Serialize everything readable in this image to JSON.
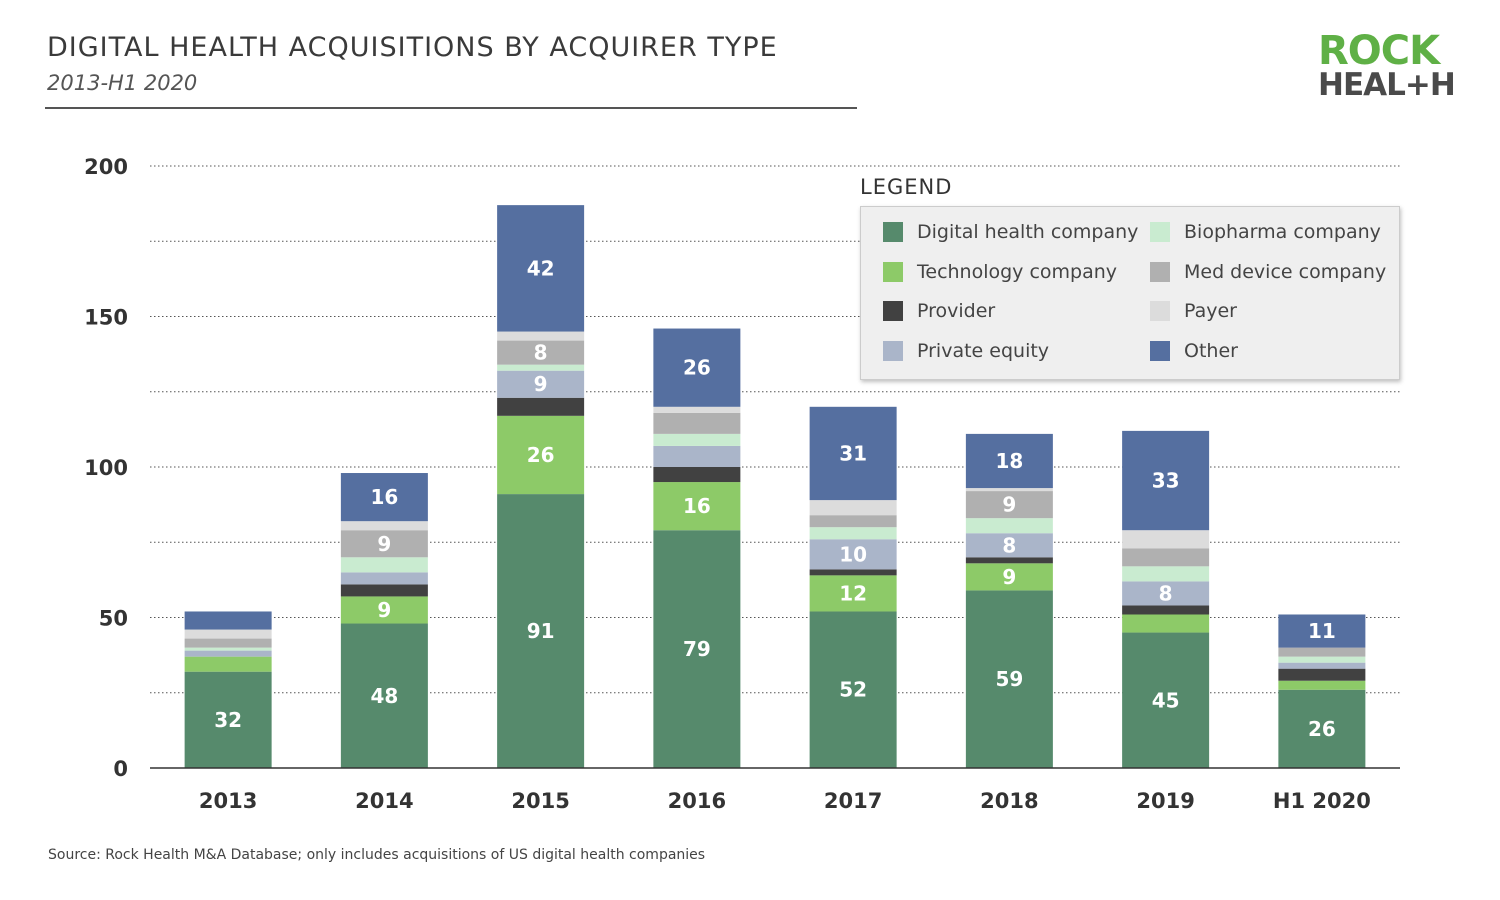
{
  "header": {
    "title": "DIGITAL HEALTH ACQUISITIONS BY ACQUIRER TYPE",
    "subtitle": "2013-H1 2020"
  },
  "logo": {
    "line1": "ROCK",
    "line2": "HEAL+H"
  },
  "legend": {
    "title": "LEGEND"
  },
  "footer": {
    "source": "Source: Rock Health M&A Database; only includes acquisitions of US digital health companies"
  },
  "chart_data": {
    "type": "bar",
    "stacked": true,
    "title": "DIGITAL HEALTH ACQUISITIONS BY ACQUIRER TYPE",
    "subtitle": "2013-H1 2020",
    "categories": [
      "2013",
      "2014",
      "2015",
      "2016",
      "2017",
      "2018",
      "2019",
      "H1 2020"
    ],
    "ylim": [
      0,
      200
    ],
    "yticks": [
      0,
      50,
      100,
      150,
      200
    ],
    "grid": true,
    "legend_position": "top-right",
    "series": [
      {
        "name": "Digital health company",
        "color": "#568a6c",
        "values": [
          32,
          48,
          91,
          79,
          52,
          59,
          45,
          26
        ],
        "labels": [
          32,
          48,
          91,
          79,
          52,
          59,
          45,
          26
        ]
      },
      {
        "name": "Technology company",
        "color": "#8dca68",
        "values": [
          5,
          9,
          26,
          16,
          12,
          9,
          6,
          3
        ],
        "labels": [
          null,
          9,
          26,
          16,
          12,
          9,
          null,
          null
        ]
      },
      {
        "name": "Provider",
        "color": "#414141",
        "values": [
          0,
          4,
          6,
          5,
          2,
          2,
          3,
          4
        ],
        "labels": [
          null,
          null,
          null,
          null,
          null,
          null,
          null,
          null
        ]
      },
      {
        "name": "Private equity",
        "color": "#aab5c9",
        "values": [
          2,
          4,
          9,
          7,
          10,
          8,
          8,
          2
        ],
        "labels": [
          null,
          null,
          9,
          null,
          10,
          8,
          8,
          null
        ]
      },
      {
        "name": "Biopharma company",
        "color": "#c9ebd0",
        "values": [
          1,
          5,
          2,
          4,
          4,
          5,
          5,
          2
        ],
        "labels": [
          null,
          null,
          null,
          null,
          null,
          null,
          null,
          null
        ]
      },
      {
        "name": "Med device company",
        "color": "#b0b0b0",
        "values": [
          3,
          9,
          8,
          7,
          4,
          9,
          6,
          3
        ],
        "labels": [
          null,
          9,
          8,
          null,
          null,
          9,
          null,
          null
        ]
      },
      {
        "name": "Payer",
        "color": "#dcdcdc",
        "values": [
          3,
          3,
          3,
          2,
          5,
          1,
          6,
          0
        ],
        "labels": [
          null,
          null,
          null,
          null,
          null,
          null,
          null,
          null
        ]
      },
      {
        "name": "Other",
        "color": "#556fa0",
        "values": [
          6,
          16,
          42,
          26,
          31,
          18,
          33,
          11
        ],
        "labels": [
          null,
          16,
          42,
          26,
          31,
          18,
          33,
          11
        ]
      }
    ]
  }
}
